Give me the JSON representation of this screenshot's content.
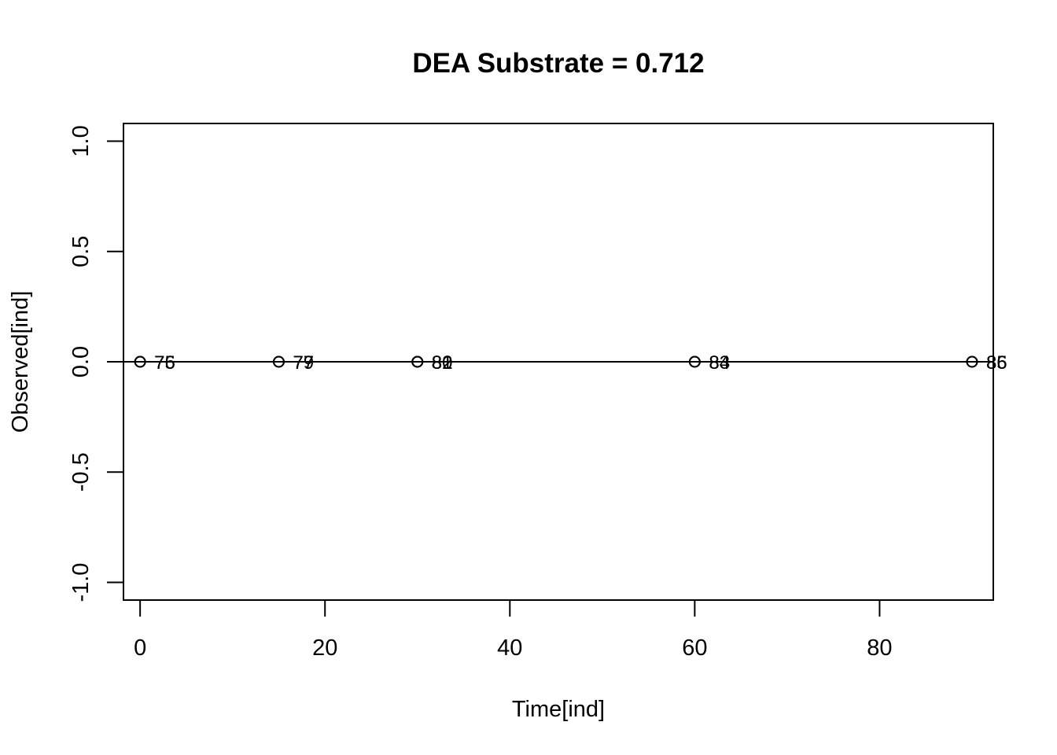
{
  "chart_data": {
    "type": "scatter",
    "title": "DEA Substrate = 0.712",
    "xlabel": "Time[ind]",
    "ylabel": "Observed[ind]",
    "xlim": [
      -1.8,
      92.3
    ],
    "ylim": [
      -1.08,
      1.08
    ],
    "x_ticks": [
      0,
      20,
      40,
      60,
      80
    ],
    "x_tick_labels": [
      "0",
      "20",
      "40",
      "60",
      "80"
    ],
    "y_ticks": [
      -1.0,
      -0.5,
      0.0,
      0.5,
      1.0
    ],
    "y_tick_labels": [
      "-1.0",
      "-0.5",
      "0.0",
      "0.5",
      "1.0"
    ],
    "reference_line_y": 0,
    "grid": false,
    "points": [
      {
        "x": 0,
        "y": 0,
        "label": "75"
      },
      {
        "x": 0,
        "y": 0,
        "label": "76"
      },
      {
        "x": 15,
        "y": 0,
        "label": "77"
      },
      {
        "x": 15,
        "y": 0,
        "label": "79"
      },
      {
        "x": 30,
        "y": 0,
        "label": "80"
      },
      {
        "x": 30,
        "y": 0,
        "label": "81"
      },
      {
        "x": 30,
        "y": 0,
        "label": "82"
      },
      {
        "x": 60,
        "y": 0,
        "label": "83"
      },
      {
        "x": 60,
        "y": 0,
        "label": "84"
      },
      {
        "x": 90,
        "y": 0,
        "label": "85"
      },
      {
        "x": 90,
        "y": 0,
        "label": "86"
      }
    ],
    "colors": {
      "foreground": "#000000",
      "background": "#ffffff"
    }
  }
}
